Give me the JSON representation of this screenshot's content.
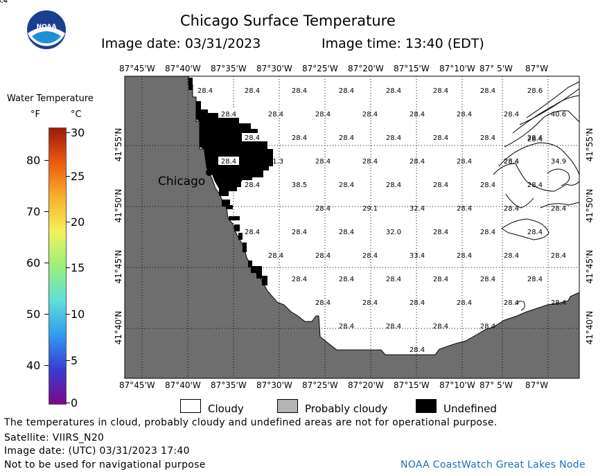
{
  "header": {
    "title": "Chicago Surface Temperature",
    "image_date": "Image date: 03/31/2023",
    "image_time": "Image time: 13:40 (EDT)"
  },
  "colorbar": {
    "title": "Water Temperature",
    "unit_f": "°F",
    "unit_c": "°C",
    "f_ticks": [
      "80",
      "70",
      "60",
      "50",
      "40"
    ],
    "c_ticks": [
      "30",
      "25",
      "20",
      "15",
      "10",
      "5",
      "0"
    ],
    "gradient_colors": [
      "#7b0a86",
      "#3b3bd1",
      "#2f9bef",
      "#5ee0d8",
      "#9af07a",
      "#f2f25a",
      "#f7b12c",
      "#ee5a12",
      "#9b1b0a"
    ]
  },
  "axes": {
    "lon_labels": [
      "87°45'W",
      "87°40'W",
      "87°35'W",
      "87°30'W",
      "87°25'W",
      "87°20'W",
      "87°15'W",
      "87°10'W",
      "87° 5'W",
      "87°W"
    ],
    "lat_labels": [
      "41°55'N",
      "41°50'N",
      "41°45'N",
      "41°40'N"
    ]
  },
  "map": {
    "city_label": "Chicago",
    "temp_labels": [
      "28.4",
      "28.4",
      "28.4",
      "28.4",
      "28.4",
      "28.4",
      "28.4",
      "28.6",
      "28.4",
      "28.4",
      "28.4",
      "28.4",
      "28.4",
      "28.4",
      "40.6",
      "28.4",
      "28.4",
      "28.4",
      "28.4",
      "28.4",
      "28.4",
      "31.3",
      "28.4",
      "28.4",
      "28.4",
      "28.4",
      "28.4",
      "28.4",
      "28.4",
      "34.9",
      "38.5",
      "28.4",
      "28.4",
      "28.4",
      "28.4",
      "28.4",
      "28.4",
      "29.1",
      "32.4",
      "28.4",
      "28.4",
      "28.4",
      "28.4",
      "28.4",
      "28.4",
      "32.0",
      "28.4",
      "28.4",
      "28.4",
      "28.4",
      "28.4",
      "28.4",
      "33.4",
      "28.4",
      "28.4",
      "28.4",
      "28.4",
      "28.4",
      "28.4",
      "28.4",
      "28.4",
      "28.4",
      "28.4",
      "28.4",
      "28.4",
      "28.4",
      "28.4",
      "28.4",
      "28.4",
      "28.4",
      "28.4",
      "28.4",
      "28.4",
      "28.4",
      "28.4",
      "28.4",
      "28.4",
      "28.4"
    ]
  },
  "legend": {
    "cloudy": "Cloudy",
    "probably_cloudy": "Probably cloudy",
    "undefined": "Undefined"
  },
  "footer": {
    "disclaimer": "The temperatures in cloud, probably cloudy and undefined areas are not for operational purpose.",
    "satellite": "Satellite: VIIRS_N20",
    "utc_date": "Image date: (UTC) 03/31/2023  17:40",
    "nav_warning": "Not to be used for navigational purpose",
    "credit": "NOAA CoastWatch Great Lakes Node"
  }
}
